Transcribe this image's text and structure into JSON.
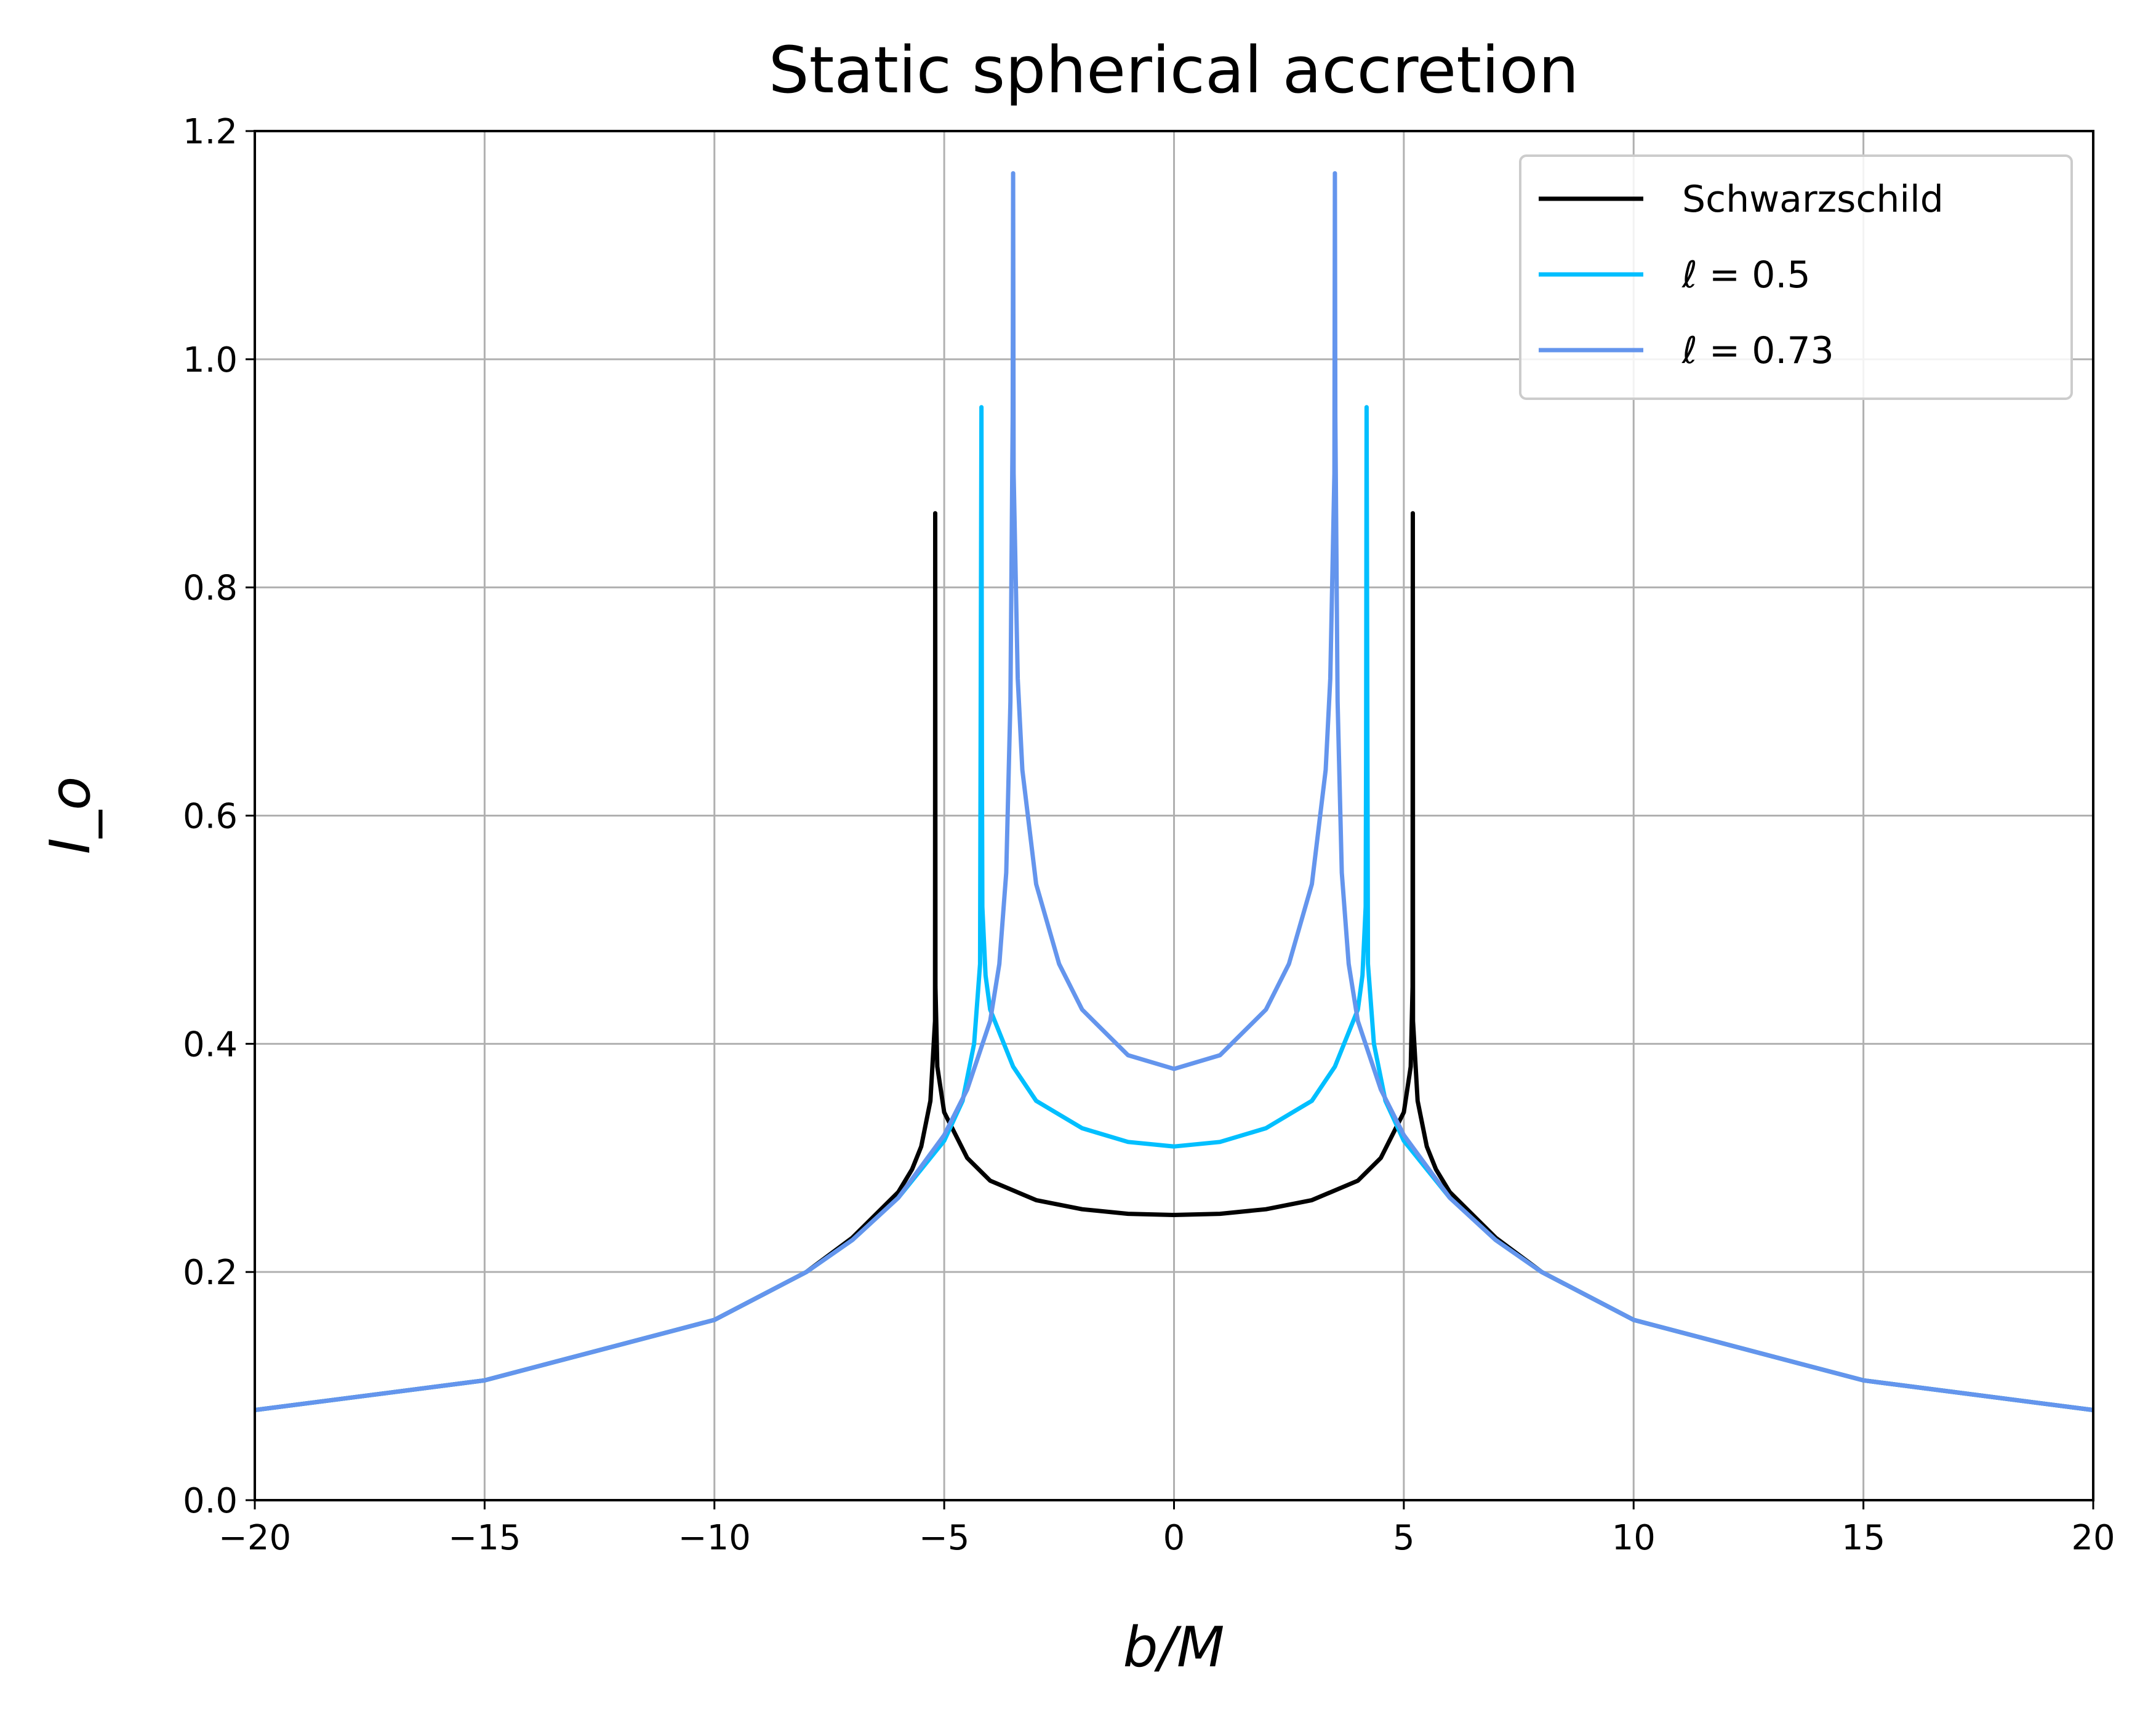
{
  "chart_data": {
    "type": "line",
    "title": "Static spherical accretion",
    "xlabel": "b/M",
    "ylabel": "I_o",
    "xlim": [
      -20,
      20
    ],
    "ylim": [
      0,
      1.2
    ],
    "grid": true,
    "legend_position": "top-right",
    "xticks": [
      -20,
      -15,
      -10,
      -5,
      0,
      5,
      10,
      15,
      20
    ],
    "xtick_labels": [
      "−20",
      "−15",
      "−10",
      "−5",
      "0",
      "5",
      "10",
      "15",
      "20"
    ],
    "yticks": [
      0.0,
      0.2,
      0.4,
      0.6,
      0.8,
      1.0,
      1.2
    ],
    "ytick_labels": [
      "0.0",
      "0.2",
      "0.4",
      "0.6",
      "0.8",
      "1.0",
      "1.2"
    ],
    "series": [
      {
        "name": "Schwarzschild",
        "color": "#000000",
        "x": [
          -20,
          -15,
          -10,
          -8,
          -7,
          -6,
          -5.7,
          -5.5,
          -5.3,
          -5.2,
          -5.196,
          -5.19,
          -5.15,
          -5.0,
          -4.5,
          -4.0,
          -3.0,
          -2.0,
          -1.0,
          0,
          1.0,
          2.0,
          3.0,
          4.0,
          4.5,
          5.0,
          5.15,
          5.19,
          5.196,
          5.2,
          5.3,
          5.5,
          5.7,
          6,
          7,
          8,
          10,
          15,
          20
        ],
        "y": [
          0.079,
          0.105,
          0.158,
          0.2,
          0.23,
          0.27,
          0.29,
          0.31,
          0.35,
          0.42,
          0.865,
          0.45,
          0.38,
          0.34,
          0.3,
          0.28,
          0.263,
          0.255,
          0.251,
          0.25,
          0.251,
          0.255,
          0.263,
          0.28,
          0.3,
          0.34,
          0.38,
          0.45,
          0.865,
          0.42,
          0.35,
          0.31,
          0.29,
          0.27,
          0.23,
          0.2,
          0.158,
          0.105,
          0.079
        ]
      },
      {
        "name": "ℓ = 0.5",
        "color": "#00bfff",
        "x": [
          -20,
          -15,
          -10,
          -8,
          -7,
          -6,
          -5,
          -4.6,
          -4.35,
          -4.22,
          -4.19,
          -4.18,
          -4.17,
          -4.1,
          -4.0,
          -3.5,
          -3.0,
          -2.0,
          -1.0,
          0,
          1.0,
          2.0,
          3.0,
          3.5,
          4.0,
          4.1,
          4.17,
          4.18,
          4.19,
          4.22,
          4.35,
          4.6,
          5,
          6,
          7,
          8,
          10,
          15,
          20
        ],
        "y": [
          0.079,
          0.105,
          0.158,
          0.2,
          0.228,
          0.265,
          0.315,
          0.35,
          0.4,
          0.47,
          0.958,
          0.65,
          0.52,
          0.46,
          0.43,
          0.38,
          0.35,
          0.326,
          0.314,
          0.31,
          0.314,
          0.326,
          0.35,
          0.38,
          0.43,
          0.46,
          0.52,
          0.65,
          0.958,
          0.47,
          0.4,
          0.35,
          0.315,
          0.265,
          0.228,
          0.2,
          0.158,
          0.105,
          0.079
        ]
      },
      {
        "name": "ℓ = 0.73",
        "color": "#6495ed",
        "x": [
          -20,
          -15,
          -10,
          -8,
          -7,
          -6,
          -5,
          -4.5,
          -4.0,
          -3.8,
          -3.65,
          -3.56,
          -3.51,
          -3.5,
          -3.49,
          -3.4,
          -3.3,
          -3.0,
          -2.5,
          -2.0,
          -1.0,
          0,
          1.0,
          2.0,
          2.5,
          3.0,
          3.3,
          3.4,
          3.49,
          3.5,
          3.51,
          3.56,
          3.65,
          3.8,
          4.0,
          4.5,
          5,
          6,
          7,
          8,
          10,
          15,
          20
        ],
        "y": [
          0.079,
          0.105,
          0.158,
          0.2,
          0.228,
          0.265,
          0.32,
          0.36,
          0.42,
          0.47,
          0.55,
          0.7,
          0.95,
          1.163,
          0.9,
          0.72,
          0.64,
          0.54,
          0.47,
          0.43,
          0.39,
          0.378,
          0.39,
          0.43,
          0.47,
          0.54,
          0.64,
          0.72,
          0.9,
          1.163,
          0.95,
          0.7,
          0.55,
          0.47,
          0.42,
          0.36,
          0.32,
          0.265,
          0.228,
          0.2,
          0.158,
          0.105,
          0.079
        ]
      }
    ]
  }
}
